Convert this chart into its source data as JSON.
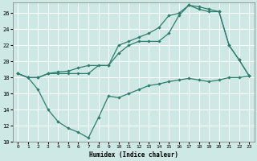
{
  "xlabel": "Humidex (Indice chaleur)",
  "bg_color": "#cde8e5",
  "line_color": "#2e7d6e",
  "grid_color": "#ffffff",
  "ylim": [
    10,
    27
  ],
  "xlim": [
    -0.5,
    23.5
  ],
  "yticks": [
    10,
    12,
    14,
    16,
    18,
    20,
    22,
    24,
    26
  ],
  "xtick_labels": [
    "0",
    "1",
    "2",
    "3",
    "4",
    "5",
    "6",
    "7",
    "8",
    "9",
    "10",
    "11",
    "12",
    "13",
    "14",
    "15",
    "16",
    "17",
    "18",
    "19",
    "20",
    "21",
    "22",
    "23"
  ],
  "line1_x": [
    0,
    1,
    2,
    3,
    4,
    5,
    6,
    7,
    8,
    9,
    10,
    11,
    12,
    13,
    14,
    15,
    16,
    17,
    18,
    19,
    20,
    21,
    22,
    23
  ],
  "line1_y": [
    18.5,
    18.0,
    18.0,
    18.5,
    18.5,
    18.5,
    18.5,
    18.5,
    19.5,
    19.5,
    21.0,
    22.0,
    22.5,
    22.5,
    22.5,
    23.5,
    25.7,
    27.0,
    26.8,
    26.5,
    26.2,
    22.0,
    20.2,
    18.2
  ],
  "line2_x": [
    0,
    1,
    2,
    3,
    4,
    5,
    6,
    7,
    8,
    9,
    10,
    11,
    12,
    13,
    14,
    15,
    16,
    17,
    18,
    19,
    20,
    21,
    22,
    23
  ],
  "line2_y": [
    18.5,
    18.0,
    16.5,
    14.0,
    12.5,
    11.7,
    11.2,
    10.5,
    13.0,
    15.7,
    15.5,
    16.0,
    16.5,
    17.0,
    17.2,
    17.5,
    17.7,
    17.9,
    17.7,
    17.5,
    17.7,
    18.0,
    18.0,
    18.2
  ],
  "line3_x": [
    0,
    1,
    2,
    3,
    4,
    5,
    6,
    7,
    9,
    10,
    11,
    12,
    13,
    14,
    15,
    16,
    17,
    18,
    19,
    20,
    21,
    22,
    23
  ],
  "line3_y": [
    18.5,
    18.0,
    18.0,
    18.5,
    18.7,
    18.8,
    19.2,
    19.5,
    19.5,
    22.0,
    22.5,
    23.0,
    23.5,
    24.2,
    25.7,
    26.0,
    27.0,
    26.5,
    26.2,
    26.2,
    22.0,
    20.2,
    18.2
  ]
}
